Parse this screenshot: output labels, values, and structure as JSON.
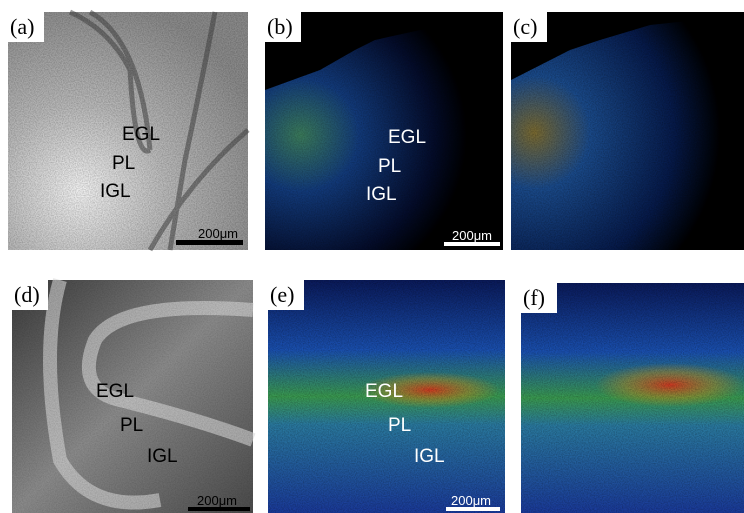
{
  "panels": [
    {
      "label": "(a)",
      "annotations": [
        "EGL",
        "PL",
        "IGL"
      ],
      "scale_bar": "200μm"
    },
    {
      "label": "(b)",
      "annotations": [
        "EGL",
        "PL",
        "IGL"
      ],
      "scale_bar": "200μm"
    },
    {
      "label": "(c)"
    },
    {
      "label": "(d)",
      "annotations": [
        "EGL",
        "PL",
        "IGL"
      ],
      "scale_bar": "200μm"
    },
    {
      "label": "(e)",
      "annotations": [
        "EGL",
        "PL",
        "IGL"
      ],
      "scale_bar": "200μm"
    },
    {
      "label": "(f)"
    }
  ]
}
